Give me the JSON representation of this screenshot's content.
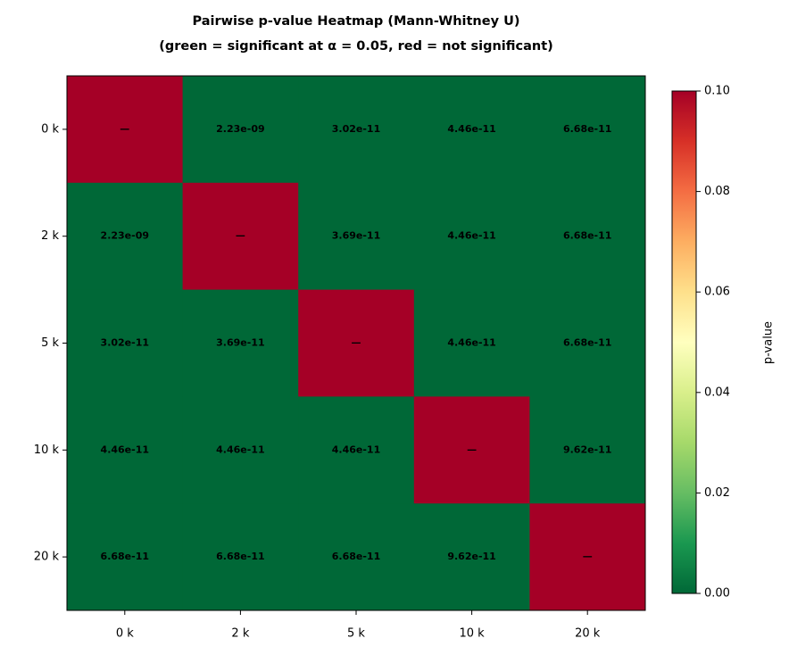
{
  "chart_data": {
    "type": "heatmap",
    "title": "Pairwise p-value Heatmap  (Mann-Whitney U)",
    "subtitle": "(green = significant at α = 0.05, red = not significant)",
    "categories": [
      "0 k",
      "2 k",
      "5 k",
      "10 k",
      "20 k"
    ],
    "values": [
      [
        1,
        2.23e-09,
        3.02e-11,
        4.46e-11,
        6.68e-11
      ],
      [
        2.23e-09,
        1,
        3.69e-11,
        4.46e-11,
        6.68e-11
      ],
      [
        3.02e-11,
        3.69e-11,
        1,
        4.46e-11,
        6.68e-11
      ],
      [
        4.46e-11,
        4.46e-11,
        4.46e-11,
        1,
        9.62e-11
      ],
      [
        6.68e-11,
        6.68e-11,
        6.68e-11,
        9.62e-11,
        1
      ]
    ],
    "value_labels": [
      [
        "—",
        "2.23e-09",
        "3.02e-11",
        "4.46e-11",
        "6.68e-11"
      ],
      [
        "2.23e-09",
        "—",
        "3.69e-11",
        "4.46e-11",
        "6.68e-11"
      ],
      [
        "3.02e-11",
        "3.69e-11",
        "—",
        "4.46e-11",
        "6.68e-11"
      ],
      [
        "4.46e-11",
        "4.46e-11",
        "4.46e-11",
        "—",
        "9.62e-11"
      ],
      [
        "6.68e-11",
        "6.68e-11",
        "6.68e-11",
        "9.62e-11",
        "—"
      ]
    ],
    "colorbar_label": "p-value",
    "zlim": [
      0,
      0.1
    ],
    "zticks": [
      {
        "value": 0,
        "label": "0.00"
      },
      {
        "value": 0.02,
        "label": "0.02"
      },
      {
        "value": 0.04,
        "label": "0.04"
      },
      {
        "value": 0.06,
        "label": "0.06"
      },
      {
        "value": 0.08,
        "label": "0.08"
      },
      {
        "value": 0.1,
        "label": "0.10"
      }
    ],
    "colorscale": [
      "#006837",
      "#1a9850",
      "#66bd63",
      "#a6d96a",
      "#d9ef8b",
      "#ffffbf",
      "#fee08b",
      "#fdae61",
      "#f46d43",
      "#d73027",
      "#a50026"
    ]
  }
}
